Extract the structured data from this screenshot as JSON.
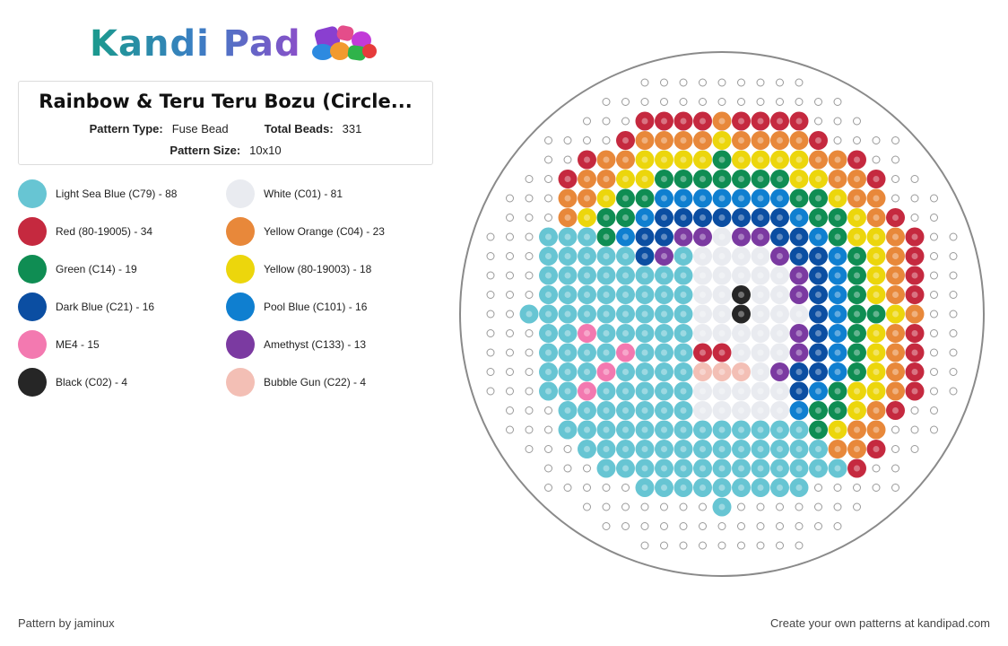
{
  "brand": {
    "logo_text": "Kandi Pad"
  },
  "pattern": {
    "title": "Rainbow & Teru Teru Bozu (Circle...",
    "type_label": "Pattern Type:",
    "type_value": "Fuse Bead",
    "total_label": "Total Beads:",
    "total_value": "331",
    "size_label": "Pattern Size:",
    "size_value": "10x10"
  },
  "legend": [
    {
      "label": "Light Sea Blue (C79) - 88",
      "color": "#67c5d3"
    },
    {
      "label": "White (C01) - 81",
      "color": "#e9ebf0"
    },
    {
      "label": "Red (80-19005) - 34",
      "color": "#c5293f"
    },
    {
      "label": "Yellow Orange (C04) - 23",
      "color": "#e8883a"
    },
    {
      "label": "Green (C14) - 19",
      "color": "#0f8d53"
    },
    {
      "label": "Yellow (80-19003) - 18",
      "color": "#ecd60c"
    },
    {
      "label": "Dark Blue (C21) - 16",
      "color": "#0b4ea2"
    },
    {
      "label": "Pool Blue (C101) - 16",
      "color": "#0f7fd0"
    },
    {
      "label": "ME4 - 15",
      "color": "#f379b0"
    },
    {
      "label": "Amethyst (C133) - 13",
      "color": "#7b3aa1"
    },
    {
      "label": "Black (C02) - 4",
      "color": "#262626"
    },
    {
      "label": "Bubble Gun (C22) - 4",
      "color": "#f3bfb5"
    }
  ],
  "footer": {
    "author": "Pattern by jaminux",
    "cta": "Create your own patterns at kandipad.com"
  }
}
